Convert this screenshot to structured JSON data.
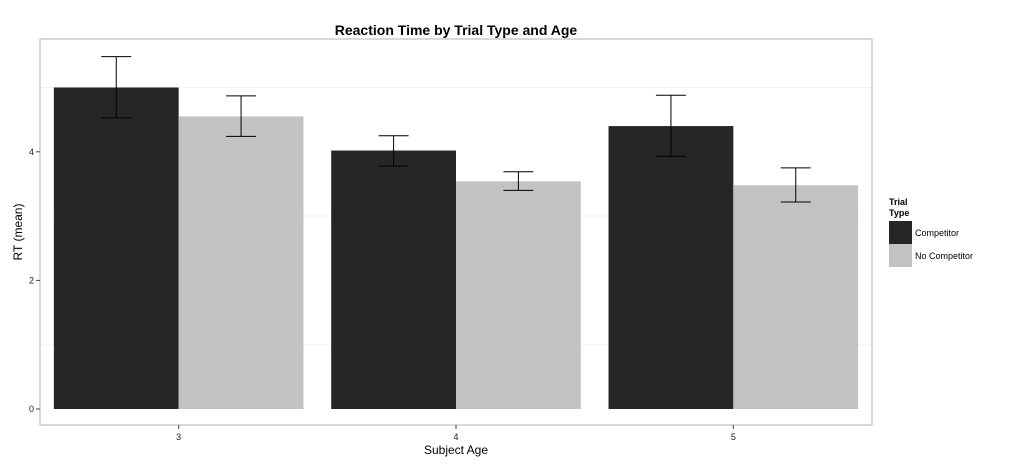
{
  "chart_data": {
    "type": "bar",
    "title": "Reaction Time by Trial Type and Age",
    "xlabel": "Subject Age",
    "ylabel": "RT (mean)",
    "categories": [
      "3",
      "4",
      "5"
    ],
    "ylim": [
      0,
      5.5
    ],
    "yticks": [
      "0",
      "2",
      "4"
    ],
    "grid": true,
    "legend": {
      "title_line1": "Trial",
      "title_line2": "Type",
      "placement": "right"
    },
    "series": [
      {
        "name": "Competitor",
        "color": "#262626",
        "values": [
          5.0,
          4.02,
          4.4
        ],
        "error_low": [
          4.53,
          3.78,
          3.93
        ],
        "error_high": [
          5.48,
          4.25,
          4.88
        ]
      },
      {
        "name": "No Competitor",
        "color": "#c2c2c2",
        "values": [
          4.55,
          3.54,
          3.48
        ],
        "error_low": [
          4.24,
          3.4,
          3.22
        ],
        "error_high": [
          4.87,
          3.69,
          3.75
        ]
      }
    ]
  }
}
